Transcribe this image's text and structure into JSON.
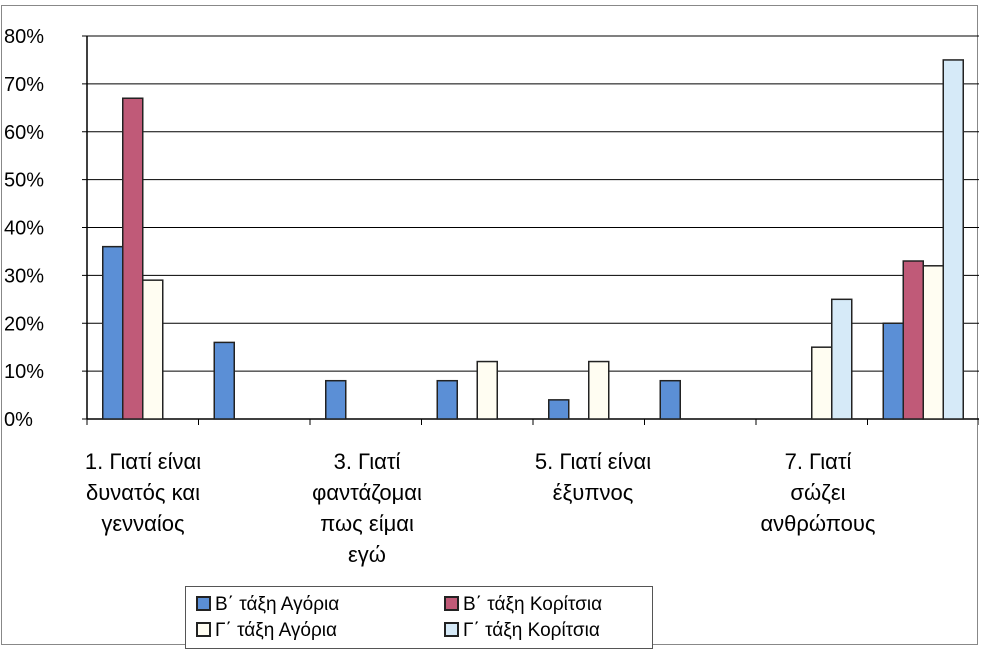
{
  "chart_data": {
    "type": "bar",
    "title": "",
    "xlabel": "",
    "ylabel": "",
    "ylim": [
      0,
      80
    ],
    "ytick_labels": [
      "0%",
      "10%",
      "20%",
      "30%",
      "40%",
      "50%",
      "60%",
      "70%",
      "80%"
    ],
    "category_labels": [
      [
        "1. Γιατί είναι",
        "δυνατός και",
        "γενναίος"
      ],
      [],
      [
        "3. Γιατί",
        "φαντάζομαι",
        "πως είμαι",
        "εγώ"
      ],
      [],
      [
        "5. Γιατί είναι",
        "έξυπνος"
      ],
      [],
      [
        "7. Γιατί",
        "σώζει",
        "ανθρώπους"
      ],
      []
    ],
    "grid": true,
    "legend_position": "bottom",
    "series": [
      {
        "name": "Β΄ τάξη Αγόρια",
        "color": "#5b8fd6",
        "values": [
          36,
          16,
          8,
          8,
          4,
          8,
          0,
          20
        ]
      },
      {
        "name": "Β΄ τάξη Κορίτσια",
        "color": "#c05a78",
        "values": [
          67,
          0,
          0,
          0,
          0,
          0,
          0,
          33
        ]
      },
      {
        "name": "Γ΄ τάξη  Αγόρια",
        "color": "#fffdf2",
        "values": [
          29,
          0,
          0,
          12,
          12,
          0,
          15,
          32
        ]
      },
      {
        "name": "Γ΄ τάξη  Κορίτσια",
        "color": "#d6eaf8",
        "values": [
          0,
          0,
          0,
          0,
          0,
          0,
          25,
          75
        ]
      }
    ]
  }
}
